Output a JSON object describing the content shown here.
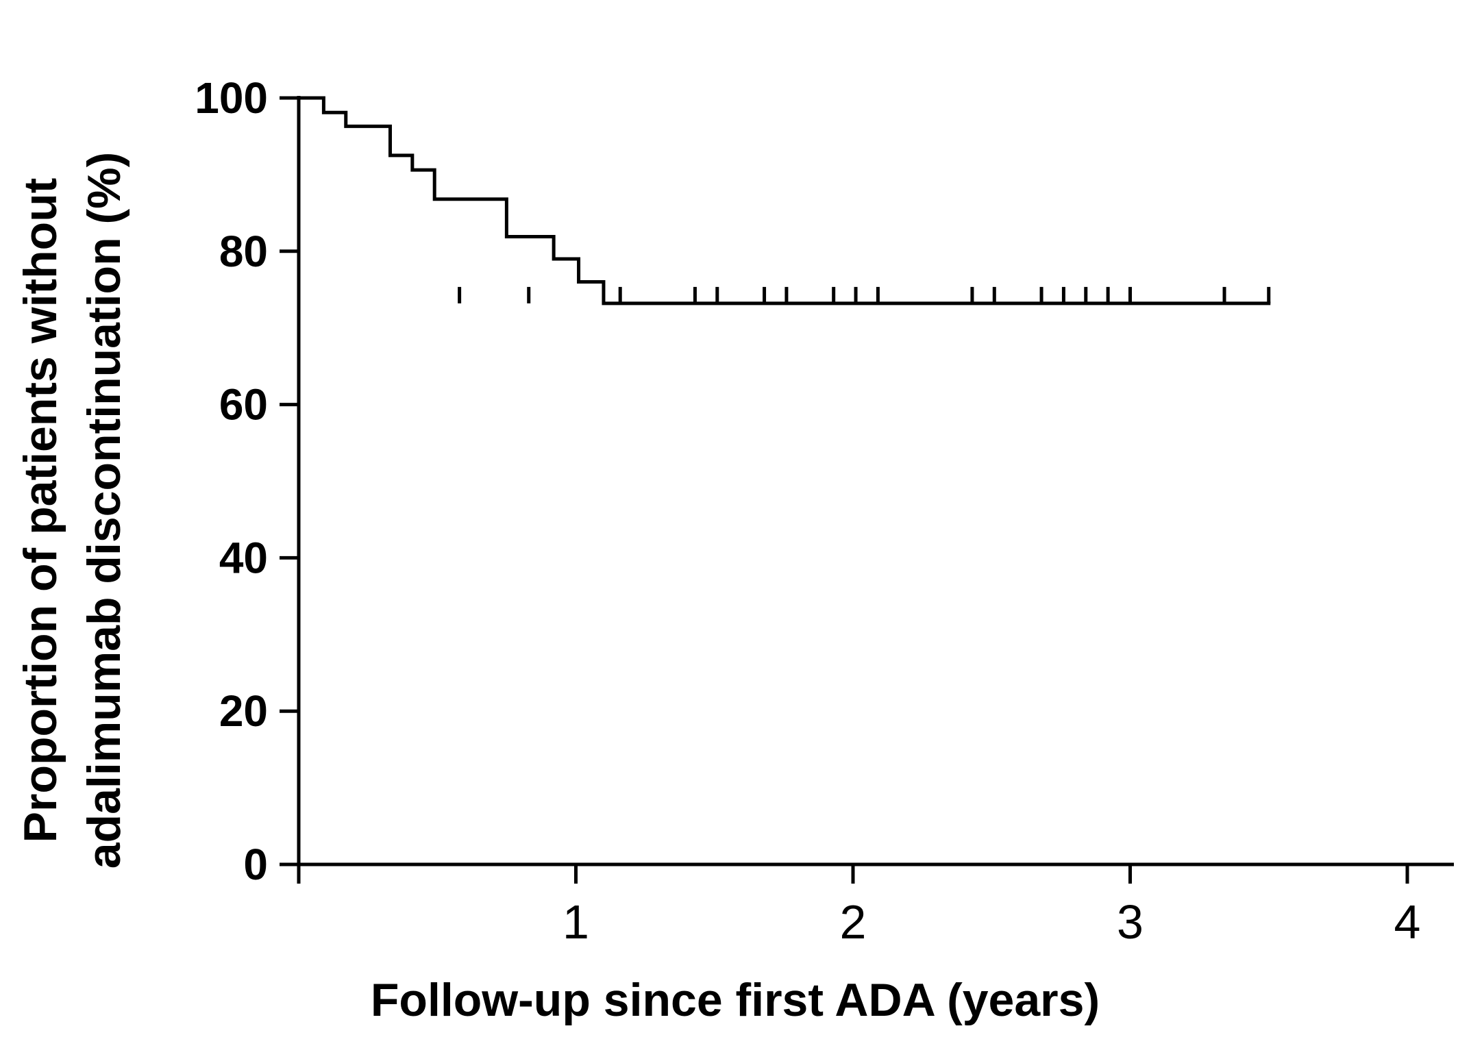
{
  "chart_data": {
    "type": "line",
    "title": "",
    "xlabel": "Follow-up since first ADA (years)",
    "ylabel_lines": [
      "Proportion of patients without",
      "adalimumab discontinuation (%)"
    ],
    "xlim": [
      0,
      4
    ],
    "ylim": [
      0,
      100
    ],
    "xticks": [
      1,
      2,
      3,
      4
    ],
    "yticks": [
      0,
      20,
      40,
      60,
      80,
      100
    ],
    "grid": false,
    "legend": "none",
    "line_color": "#000000",
    "series": [
      {
        "step": "post",
        "x": [
          0,
          0.09,
          0.17,
          0.33,
          0.41,
          0.49,
          0.75,
          0.92,
          1.01,
          1.1,
          3.5
        ],
        "y": [
          100,
          98.1,
          96.3,
          92.5,
          90.6,
          86.8,
          81.9,
          79.0,
          76.0,
          73.2,
          73.2
        ]
      }
    ],
    "censored": {
      "x": [
        0.58,
        0.83,
        1.16,
        1.43,
        1.51,
        1.68,
        1.76,
        1.93,
        2.01,
        2.09,
        2.43,
        2.51,
        2.68,
        2.76,
        2.84,
        2.92,
        3.0,
        3.34,
        3.5
      ],
      "y": 73.2
    }
  }
}
